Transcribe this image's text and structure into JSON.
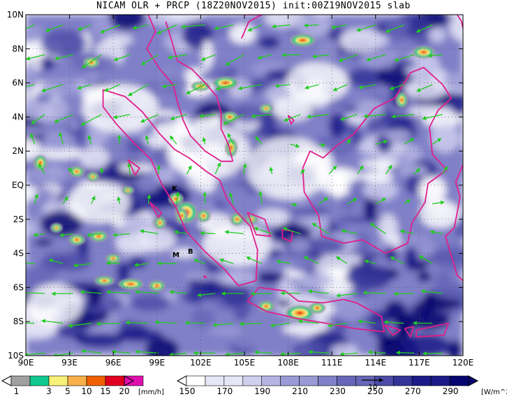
{
  "title": "NICAM OLR + PRCP (18Z20NOV2015) init:00Z19NOV2015 slab",
  "map": {
    "lat_ticks": [
      "10N",
      "8N",
      "6N",
      "4N",
      "2N",
      "EQ",
      "2S",
      "4S",
      "6S",
      "8S",
      "10S"
    ],
    "lon_ticks": [
      "90E",
      "93E",
      "96E",
      "99E",
      "102E",
      "105E",
      "108E",
      "111E",
      "114E",
      "117E",
      "120E"
    ],
    "lat_range": [
      -10,
      10
    ],
    "lon_range": [
      90,
      120
    ],
    "grid": "dotted",
    "markers": [
      {
        "label": "K",
        "lon": 100.2,
        "lat": -0.2
      },
      {
        "label": "M",
        "lon": 100.3,
        "lat": -4.1
      },
      {
        "label": "B",
        "lon": 101.3,
        "lat": -3.9
      }
    ]
  },
  "colors": {
    "coastline": "#e0208c",
    "wind_vectors": "#22cc22",
    "olr_scale": [
      "#ffffff",
      "#e6e6f6",
      "#cfcfee",
      "#b4b4e2",
      "#9a9ad6",
      "#8080c8",
      "#6666b8",
      "#4c4ca8",
      "#333398",
      "#1a1a88",
      "#060670"
    ],
    "prcp_scale": [
      "#ffffff",
      "#a0a0a0",
      "#10c890",
      "#f8f078",
      "#f8b048",
      "#f06000",
      "#e00020",
      "#e010b0"
    ]
  },
  "legend_prcp": {
    "labels": [
      "1",
      "3",
      "5",
      "10",
      "15",
      "20"
    ],
    "unit": "[mm/h]"
  },
  "legend_olr": {
    "labels": [
      "150",
      "170",
      "190",
      "210",
      "230",
      "250",
      "270",
      "290"
    ],
    "unit": "[W/m^2]"
  },
  "reference_vector": {
    "label": "10"
  }
}
